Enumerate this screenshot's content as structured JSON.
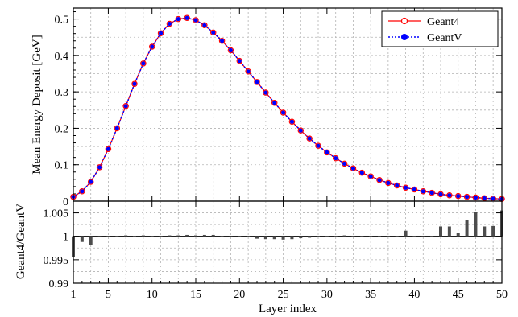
{
  "chart_data": [
    {
      "type": "line",
      "ylabel": "Mean Energy Deposit [GeV]",
      "xlim": [
        1,
        50
      ],
      "ylim": [
        0,
        0.53
      ],
      "yticks": [
        "0",
        "0.1",
        "0.2",
        "0.3",
        "0.4",
        "0.5"
      ],
      "grid": true,
      "legend_position": "top-right",
      "x": [
        1,
        2,
        3,
        4,
        5,
        6,
        7,
        8,
        9,
        10,
        11,
        12,
        13,
        14,
        15,
        16,
        17,
        18,
        19,
        20,
        21,
        22,
        23,
        24,
        25,
        26,
        27,
        28,
        29,
        30,
        31,
        32,
        33,
        34,
        35,
        36,
        37,
        38,
        39,
        40,
        41,
        42,
        43,
        44,
        45,
        46,
        47,
        48,
        49,
        50
      ],
      "series": [
        {
          "name": "Geant4",
          "color": "#ff0000",
          "marker": "open-circle",
          "line": "solid",
          "values": [
            0.012,
            0.027,
            0.053,
            0.093,
            0.143,
            0.2,
            0.261,
            0.322,
            0.378,
            0.424,
            0.461,
            0.487,
            0.5,
            0.503,
            0.497,
            0.483,
            0.463,
            0.44,
            0.414,
            0.385,
            0.356,
            0.327,
            0.298,
            0.27,
            0.243,
            0.218,
            0.194,
            0.172,
            0.152,
            0.134,
            0.118,
            0.103,
            0.09,
            0.078,
            0.068,
            0.058,
            0.05,
            0.043,
            0.037,
            0.032,
            0.027,
            0.023,
            0.019,
            0.016,
            0.014,
            0.012,
            0.01,
            0.008,
            0.007,
            0.006
          ]
        },
        {
          "name": "GeantV",
          "color": "#0000ff",
          "marker": "filled-circle",
          "line": "dotted",
          "values": [
            0.012,
            0.027,
            0.053,
            0.093,
            0.143,
            0.2,
            0.261,
            0.322,
            0.378,
            0.424,
            0.461,
            0.487,
            0.5,
            0.503,
            0.497,
            0.483,
            0.463,
            0.44,
            0.414,
            0.385,
            0.356,
            0.327,
            0.298,
            0.27,
            0.243,
            0.218,
            0.194,
            0.172,
            0.152,
            0.134,
            0.118,
            0.103,
            0.09,
            0.078,
            0.068,
            0.058,
            0.05,
            0.043,
            0.037,
            0.032,
            0.027,
            0.023,
            0.019,
            0.016,
            0.014,
            0.012,
            0.01,
            0.008,
            0.007,
            0.006
          ]
        }
      ]
    },
    {
      "type": "bar",
      "xlabel": "Layer index",
      "ylabel": "Geant4/GeantV",
      "xlim": [
        1,
        50
      ],
      "ylim": [
        0.99,
        1.0075
      ],
      "baseline": 1,
      "xticks": [
        "1",
        "5",
        "10",
        "15",
        "20",
        "25",
        "30",
        "35",
        "40",
        "45",
        "50"
      ],
      "yticks": [
        "0.99",
        "0.995",
        "1",
        "1.005"
      ],
      "grid": true,
      "bar_color": "#4d4d4d",
      "x": [
        1,
        2,
        3,
        4,
        5,
        6,
        7,
        8,
        9,
        10,
        11,
        12,
        13,
        14,
        15,
        16,
        17,
        18,
        19,
        20,
        21,
        22,
        23,
        24,
        25,
        26,
        27,
        28,
        29,
        30,
        31,
        32,
        33,
        34,
        35,
        36,
        37,
        38,
        39,
        40,
        41,
        42,
        43,
        44,
        45,
        46,
        47,
        48,
        49,
        50
      ],
      "values": [
        0.9955,
        0.9988,
        0.9982,
        0.9998,
        1.0001,
        1.0001,
        1.0002,
        1.0001,
        1.0002,
        1.0001,
        1.0001,
        1.0002,
        1.0002,
        1.0003,
        1.0002,
        1.0003,
        1.0003,
        1.0001,
        0.9999,
        1.0001,
        1.0001,
        0.9995,
        0.9994,
        0.9994,
        0.9993,
        0.9994,
        0.9996,
        0.9997,
        1.0001,
        1.0001,
        1.0001,
        1.0002,
        1.0001,
        1.0001,
        1.0001,
        1.0001,
        1.0001,
        1.0001,
        1.0012,
        1.0001,
        0.9999,
        1.0001,
        1.0021,
        1.0021,
        1.0007,
        1.0035,
        1.0051,
        1.0021,
        1.0022,
        1.0055
      ]
    }
  ]
}
